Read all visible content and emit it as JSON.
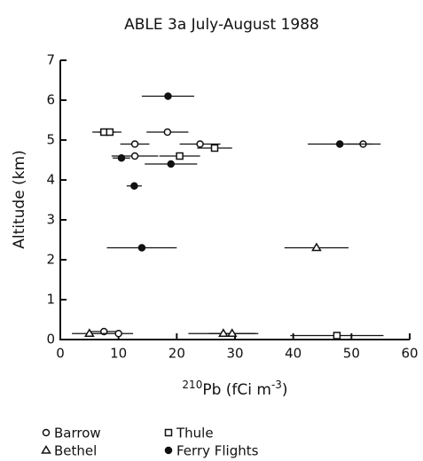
{
  "chart_data": {
    "type": "scatter",
    "title": "ABLE 3a  July-August 1988",
    "xlabel_parts": [
      "210",
      "Pb (fCi m",
      "-3",
      ")"
    ],
    "ylabel": "Altitude (km)",
    "xlim": [
      0,
      60
    ],
    "xticks": [
      0,
      10,
      20,
      30,
      40,
      50,
      60
    ],
    "ylim": [
      0,
      7
    ],
    "yticks": [
      0,
      1,
      2,
      3,
      4,
      5,
      6,
      7
    ],
    "series": [
      {
        "name": "Barrow",
        "marker": "circle-open",
        "color": "#111",
        "x": [
          18.4,
          12.8,
          12.8,
          24,
          52,
          7.5,
          10
        ],
        "values": [
          5.2,
          4.9,
          4.6,
          4.9,
          4.9,
          0.2,
          0.15
        ],
        "xerr": [
          3.6,
          2.5,
          4,
          3.5,
          3,
          2.5,
          2.5
        ]
      },
      {
        "name": "Thule",
        "marker": "square-open",
        "color": "#111",
        "x": [
          7.5,
          8.5,
          20.5,
          26.5,
          47.5
        ],
        "values": [
          5.2,
          5.2,
          4.6,
          4.8,
          0.1
        ],
        "xerr": [
          2,
          2,
          3.5,
          3,
          8
        ]
      },
      {
        "name": "Bethel",
        "marker": "triangle-open",
        "color": "#111",
        "x": [
          5,
          28,
          29.5,
          44
        ],
        "values": [
          0.15,
          0.15,
          0.15,
          2.3
        ],
        "xerr": [
          3,
          6,
          4,
          5.5
        ]
      },
      {
        "name": "Ferry Flights",
        "marker": "circle-filled",
        "color": "#111",
        "x": [
          18.5,
          10.5,
          19,
          12.7,
          14,
          48
        ],
        "values": [
          6.1,
          4.55,
          4.4,
          3.85,
          2.3,
          4.9
        ],
        "xerr": [
          4.5,
          1.5,
          4.5,
          1.3,
          6,
          5.5
        ]
      }
    ]
  }
}
